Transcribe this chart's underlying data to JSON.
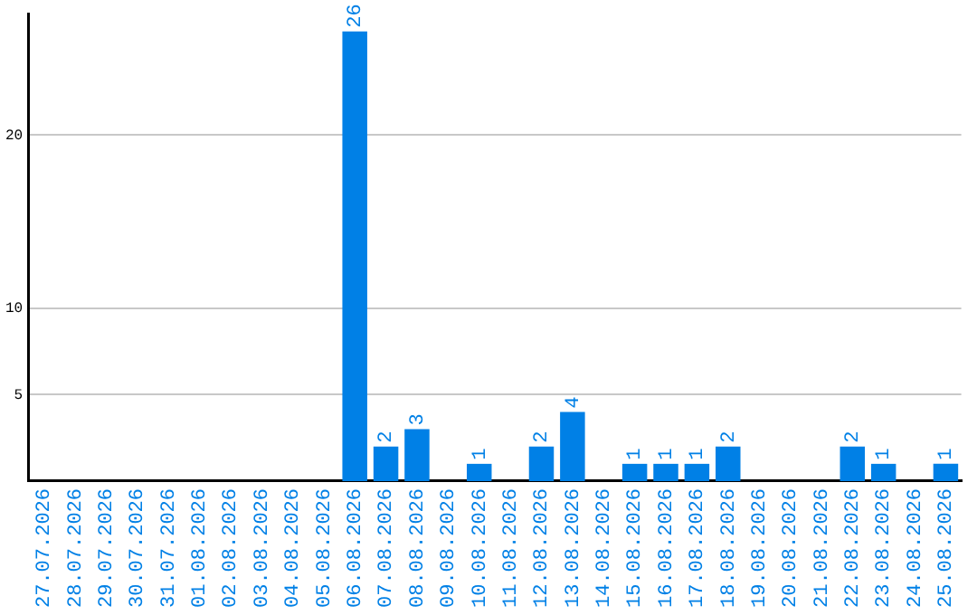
{
  "chart_data": {
    "type": "bar",
    "categories": [
      "27.07.2026",
      "28.07.2026",
      "29.07.2026",
      "30.07.2026",
      "31.07.2026",
      "01.08.2026",
      "02.08.2026",
      "03.08.2026",
      "04.08.2026",
      "05.08.2026",
      "06.08.2026",
      "07.08.2026",
      "08.08.2026",
      "09.08.2026",
      "10.08.2026",
      "11.08.2026",
      "12.08.2026",
      "13.08.2026",
      "14.08.2026",
      "15.08.2026",
      "16.08.2026",
      "17.08.2026",
      "18.08.2026",
      "19.08.2026",
      "20.08.2026",
      "21.08.2026",
      "22.08.2026",
      "23.08.2026",
      "24.08.2026",
      "25.08.2026"
    ],
    "values": [
      0,
      0,
      0,
      0,
      0,
      0,
      0,
      0,
      0,
      0,
      26,
      2,
      3,
      0,
      1,
      0,
      2,
      4,
      0,
      1,
      1,
      1,
      2,
      0,
      0,
      0,
      2,
      1,
      0,
      1
    ],
    "value_labels": [
      null,
      null,
      null,
      null,
      null,
      null,
      null,
      null,
      null,
      null,
      "26",
      "2",
      "3",
      null,
      "1",
      null,
      "2",
      "4",
      null,
      "1",
      "1",
      "1",
      "2",
      null,
      null,
      null,
      "2",
      "1",
      null,
      "1"
    ],
    "color": "#0080e6",
    "ylim": [
      0,
      27
    ],
    "yticks": [
      5,
      10,
      20
    ],
    "grid": "y",
    "legend": false
  }
}
